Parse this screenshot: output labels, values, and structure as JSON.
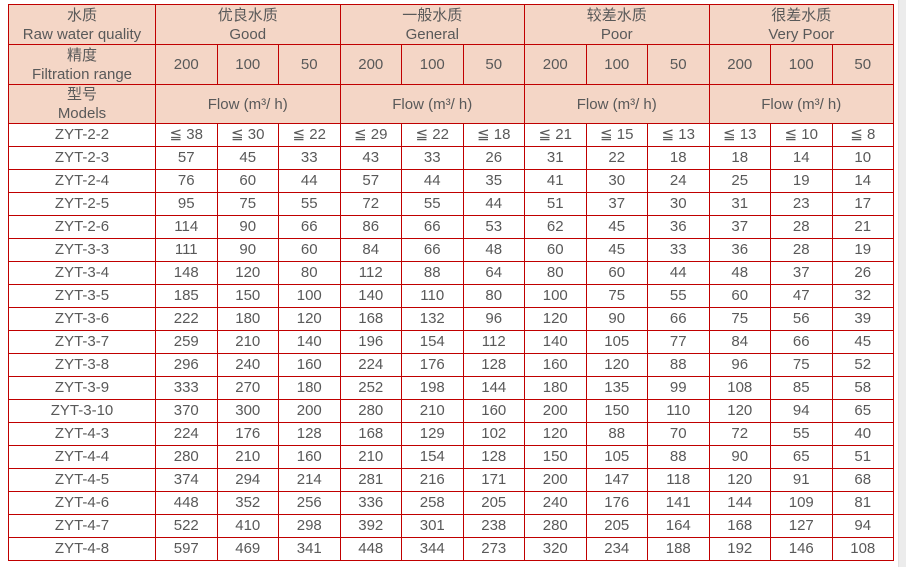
{
  "colors": {
    "border": "#c00000",
    "header_bg": "#f4d6c6",
    "text": "#595959",
    "row_bg": "#ffffff",
    "page_edge": "#ececec"
  },
  "chart_data": {
    "type": "table",
    "title": "ZYT filter flow specification table",
    "header": {
      "quality": {
        "zh": "水质",
        "en": "Raw water quality"
      },
      "groups": [
        {
          "zh": "优良水质",
          "en": "Good"
        },
        {
          "zh": "一般水质",
          "en": "General"
        },
        {
          "zh": "较差水质",
          "en": "Poor"
        },
        {
          "zh": "很差水质",
          "en": "Very Poor"
        }
      ],
      "filtration": {
        "zh": "精度",
        "en": "Filtration range"
      },
      "ranges": [
        "200",
        "100",
        "50"
      ],
      "models": {
        "zh": "型号",
        "en": "Models"
      },
      "flow_label": "Flow (m³/ h)"
    },
    "rows": [
      {
        "model": "ZYT-2-2",
        "values": [
          "≦ 38",
          "≦ 30",
          "≦ 22",
          "≦ 29",
          "≦ 22",
          "≦ 18",
          "≦ 21",
          "≦ 15",
          "≦ 13",
          "≦ 13",
          "≦ 10",
          "≦ 8"
        ]
      },
      {
        "model": "ZYT-2-3",
        "values": [
          "57",
          "45",
          "33",
          "43",
          "33",
          "26",
          "31",
          "22",
          "18",
          "18",
          "14",
          "10"
        ]
      },
      {
        "model": "ZYT-2-4",
        "values": [
          "76",
          "60",
          "44",
          "57",
          "44",
          "35",
          "41",
          "30",
          "24",
          "25",
          "19",
          "14"
        ]
      },
      {
        "model": "ZYT-2-5",
        "values": [
          "95",
          "75",
          "55",
          "72",
          "55",
          "44",
          "51",
          "37",
          "30",
          "31",
          "23",
          "17"
        ]
      },
      {
        "model": "ZYT-2-6",
        "values": [
          "114",
          "90",
          "66",
          "86",
          "66",
          "53",
          "62",
          "45",
          "36",
          "37",
          "28",
          "21"
        ]
      },
      {
        "model": "ZYT-3-3",
        "values": [
          "111",
          "90",
          "60",
          "84",
          "66",
          "48",
          "60",
          "45",
          "33",
          "36",
          "28",
          "19"
        ]
      },
      {
        "model": "ZYT-3-4",
        "values": [
          "148",
          "120",
          "80",
          "112",
          "88",
          "64",
          "80",
          "60",
          "44",
          "48",
          "37",
          "26"
        ]
      },
      {
        "model": "ZYT-3-5",
        "values": [
          "185",
          "150",
          "100",
          "140",
          "110",
          "80",
          "100",
          "75",
          "55",
          "60",
          "47",
          "32"
        ]
      },
      {
        "model": "ZYT-3-6",
        "values": [
          "222",
          "180",
          "120",
          "168",
          "132",
          "96",
          "120",
          "90",
          "66",
          "75",
          "56",
          "39"
        ]
      },
      {
        "model": "ZYT-3-7",
        "values": [
          "259",
          "210",
          "140",
          "196",
          "154",
          "112",
          "140",
          "105",
          "77",
          "84",
          "66",
          "45"
        ]
      },
      {
        "model": "ZYT-3-8",
        "values": [
          "296",
          "240",
          "160",
          "224",
          "176",
          "128",
          "160",
          "120",
          "88",
          "96",
          "75",
          "52"
        ]
      },
      {
        "model": "ZYT-3-9",
        "values": [
          "333",
          "270",
          "180",
          "252",
          "198",
          "144",
          "180",
          "135",
          "99",
          "108",
          "85",
          "58"
        ]
      },
      {
        "model": "ZYT-3-10",
        "values": [
          "370",
          "300",
          "200",
          "280",
          "210",
          "160",
          "200",
          "150",
          "110",
          "120",
          "94",
          "65"
        ]
      },
      {
        "model": "ZYT-4-3",
        "values": [
          "224",
          "176",
          "128",
          "168",
          "129",
          "102",
          "120",
          "88",
          "70",
          "72",
          "55",
          "40"
        ]
      },
      {
        "model": "ZYT-4-4",
        "values": [
          "280",
          "210",
          "160",
          "210",
          "154",
          "128",
          "150",
          "105",
          "88",
          "90",
          "65",
          "51"
        ]
      },
      {
        "model": "ZYT-4-5",
        "values": [
          "374",
          "294",
          "214",
          "281",
          "216",
          "171",
          "200",
          "147",
          "118",
          "120",
          "91",
          "68"
        ]
      },
      {
        "model": "ZYT-4-6",
        "values": [
          "448",
          "352",
          "256",
          "336",
          "258",
          "205",
          "240",
          "176",
          "141",
          "144",
          "109",
          "81"
        ]
      },
      {
        "model": "ZYT-4-7",
        "values": [
          "522",
          "410",
          "298",
          "392",
          "301",
          "238",
          "280",
          "205",
          "164",
          "168",
          "127",
          "94"
        ]
      },
      {
        "model": "ZYT-4-8",
        "values": [
          "597",
          "469",
          "341",
          "448",
          "344",
          "273",
          "320",
          "234",
          "188",
          "192",
          "146",
          "108"
        ]
      }
    ]
  }
}
